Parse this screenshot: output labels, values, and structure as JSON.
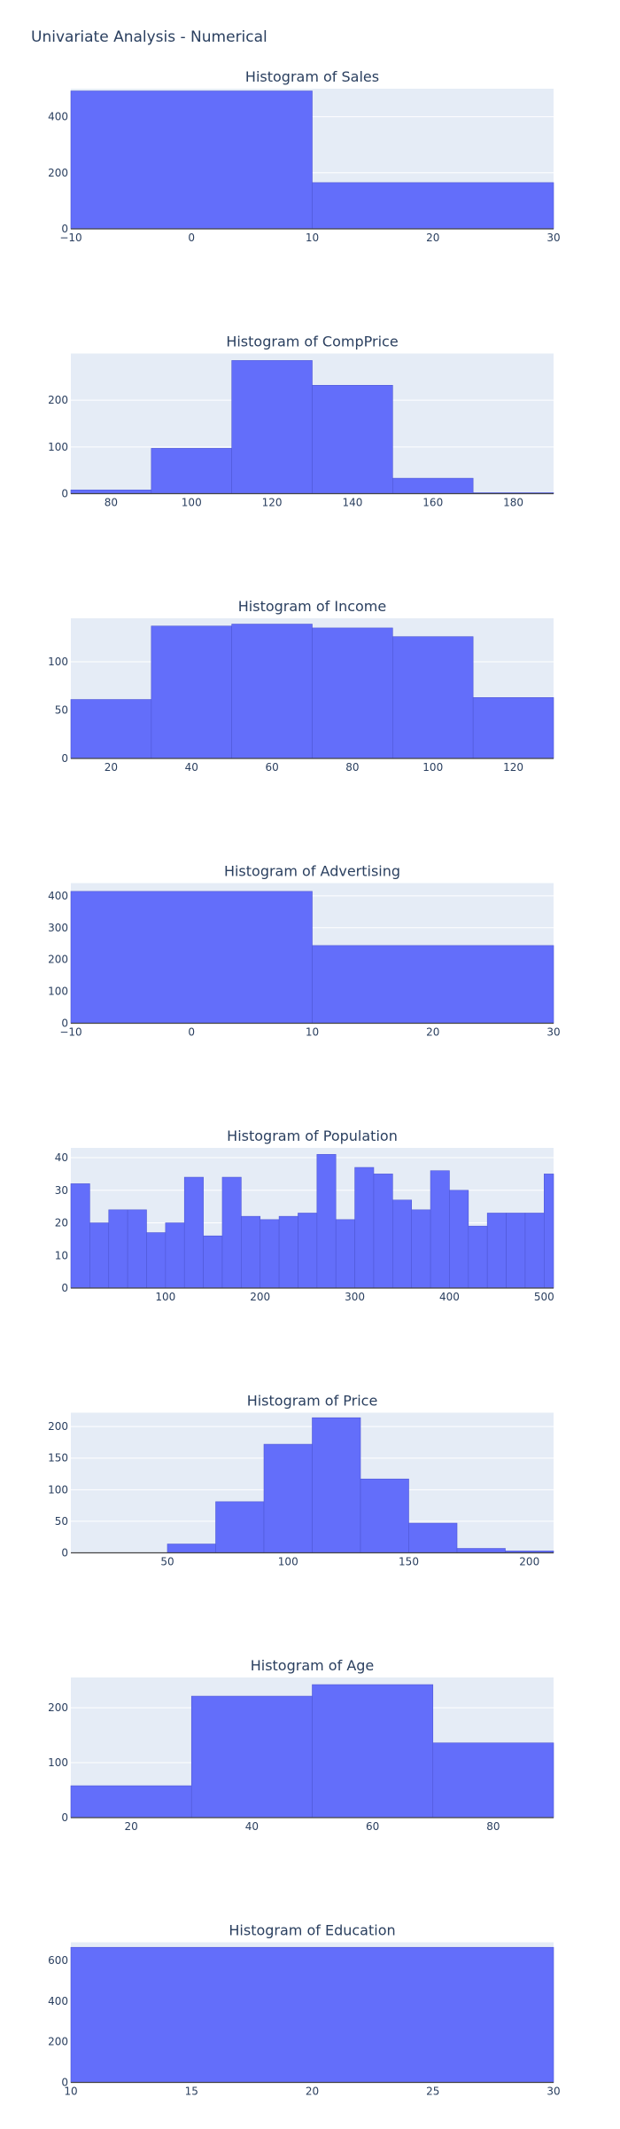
{
  "page": {
    "title": "Univariate Analysis - Numerical"
  },
  "style": {
    "plot_bg": "#e5ecf6",
    "bar_color": "#636efa",
    "bar_edge": "#4f58d6",
    "grid_color": "#ffffff",
    "text_color": "#2a3f5f"
  },
  "chart_data": [
    {
      "type": "bar",
      "title": "Histogram of Sales",
      "xlim": [
        -10,
        30
      ],
      "ylim": [
        0,
        500
      ],
      "xticks": [
        -10,
        0,
        10,
        20,
        30
      ],
      "xtick_labels": [
        "−10",
        "0",
        "10",
        "20",
        "30"
      ],
      "yticks": [
        0,
        200,
        400
      ],
      "ytick_labels": [
        "0",
        "200",
        "400"
      ],
      "grid": true,
      "bins": [
        [
          -10,
          10,
          492
        ],
        [
          10,
          30,
          165
        ]
      ]
    },
    {
      "type": "bar",
      "title": "Histogram of CompPrice",
      "xlim": [
        70,
        190
      ],
      "ylim": [
        0,
        300
      ],
      "xticks": [
        80,
        100,
        120,
        140,
        160,
        180
      ],
      "xtick_labels": [
        "80",
        "100",
        "120",
        "140",
        "160",
        "180"
      ],
      "yticks": [
        0,
        100,
        200
      ],
      "ytick_labels": [
        "0",
        "100",
        "200"
      ],
      "grid": true,
      "bins": [
        [
          70,
          90,
          8
        ],
        [
          90,
          110,
          97
        ],
        [
          110,
          130,
          285
        ],
        [
          130,
          150,
          232
        ],
        [
          150,
          170,
          33
        ],
        [
          170,
          190,
          2
        ]
      ]
    },
    {
      "type": "bar",
      "title": "Histogram of Income",
      "xlim": [
        10,
        130
      ],
      "ylim": [
        0,
        145
      ],
      "xticks": [
        20,
        40,
        60,
        80,
        100,
        120
      ],
      "xtick_labels": [
        "20",
        "40",
        "60",
        "80",
        "100",
        "120"
      ],
      "yticks": [
        0,
        50,
        100
      ],
      "ytick_labels": [
        "0",
        "50",
        "100"
      ],
      "grid": true,
      "bins": [
        [
          10,
          30,
          61
        ],
        [
          30,
          50,
          137
        ],
        [
          50,
          70,
          139
        ],
        [
          70,
          90,
          135
        ],
        [
          90,
          110,
          126
        ],
        [
          110,
          130,
          63
        ]
      ]
    },
    {
      "type": "bar",
      "title": "Histogram of Advertising",
      "xlim": [
        -10,
        30
      ],
      "ylim": [
        0,
        440
      ],
      "xticks": [
        -10,
        0,
        10,
        20,
        30
      ],
      "xtick_labels": [
        "−10",
        "0",
        "10",
        "20",
        "30"
      ],
      "yticks": [
        0,
        100,
        200,
        300,
        400
      ],
      "ytick_labels": [
        "0",
        "100",
        "200",
        "300",
        "400"
      ],
      "grid": true,
      "bins": [
        [
          -10,
          10,
          414
        ],
        [
          10,
          30,
          244
        ]
      ]
    },
    {
      "type": "bar",
      "title": "Histogram of Population",
      "xlim": [
        0,
        510
      ],
      "ylim": [
        0,
        43
      ],
      "xticks": [
        100,
        200,
        300,
        400,
        500
      ],
      "xtick_labels": [
        "100",
        "200",
        "300",
        "400",
        "500"
      ],
      "yticks": [
        0,
        10,
        20,
        30,
        40
      ],
      "ytick_labels": [
        "0",
        "10",
        "20",
        "30",
        "40"
      ],
      "grid": true,
      "bins": [
        [
          0,
          20,
          32
        ],
        [
          20,
          40,
          20
        ],
        [
          40,
          60,
          24
        ],
        [
          60,
          80,
          24
        ],
        [
          80,
          100,
          17
        ],
        [
          100,
          120,
          20
        ],
        [
          120,
          140,
          34
        ],
        [
          140,
          160,
          16
        ],
        [
          160,
          180,
          34
        ],
        [
          180,
          200,
          22
        ],
        [
          200,
          220,
          21
        ],
        [
          220,
          240,
          22
        ],
        [
          240,
          260,
          23
        ],
        [
          260,
          280,
          41
        ],
        [
          280,
          300,
          21
        ],
        [
          300,
          320,
          37
        ],
        [
          320,
          340,
          35
        ],
        [
          340,
          360,
          27
        ],
        [
          360,
          380,
          24
        ],
        [
          380,
          400,
          36
        ],
        [
          400,
          420,
          30
        ],
        [
          420,
          440,
          19
        ],
        [
          440,
          460,
          23
        ],
        [
          460,
          480,
          23
        ],
        [
          480,
          500,
          23
        ],
        [
          500,
          510,
          35
        ]
      ]
    },
    {
      "type": "bar",
      "title": "Histogram of Price",
      "xlim": [
        10,
        210
      ],
      "ylim": [
        0,
        222
      ],
      "xticks": [
        50,
        100,
        150,
        200
      ],
      "xtick_labels": [
        "50",
        "100",
        "150",
        "200"
      ],
      "yticks": [
        0,
        50,
        100,
        150,
        200
      ],
      "ytick_labels": [
        "0",
        "50",
        "100",
        "150",
        "200"
      ],
      "grid": true,
      "bins": [
        [
          50,
          70,
          14
        ],
        [
          70,
          90,
          81
        ],
        [
          90,
          110,
          172
        ],
        [
          110,
          130,
          214
        ],
        [
          130,
          150,
          117
        ],
        [
          150,
          170,
          47
        ],
        [
          170,
          190,
          7
        ],
        [
          190,
          210,
          3
        ]
      ]
    },
    {
      "type": "bar",
      "title": "Histogram of Age",
      "xlim": [
        10,
        90
      ],
      "ylim": [
        0,
        255
      ],
      "xticks": [
        20,
        40,
        60,
        80
      ],
      "xtick_labels": [
        "20",
        "40",
        "60",
        "80"
      ],
      "yticks": [
        0,
        100,
        200
      ],
      "ytick_labels": [
        "0",
        "100",
        "200"
      ],
      "grid": true,
      "bins": [
        [
          10,
          30,
          58
        ],
        [
          30,
          50,
          221
        ],
        [
          50,
          70,
          242
        ],
        [
          70,
          90,
          136
        ]
      ]
    },
    {
      "type": "bar",
      "title": "Histogram of Education",
      "xlim": [
        10,
        30
      ],
      "ylim": [
        0,
        690
      ],
      "xticks": [
        10,
        15,
        20,
        25,
        30
      ],
      "xtick_labels": [
        "10",
        "15",
        "20",
        "25",
        "30"
      ],
      "yticks": [
        0,
        200,
        400,
        600
      ],
      "ytick_labels": [
        "0",
        "200",
        "400",
        "600"
      ],
      "grid": true,
      "bins": [
        [
          10,
          30,
          665
        ]
      ]
    }
  ]
}
